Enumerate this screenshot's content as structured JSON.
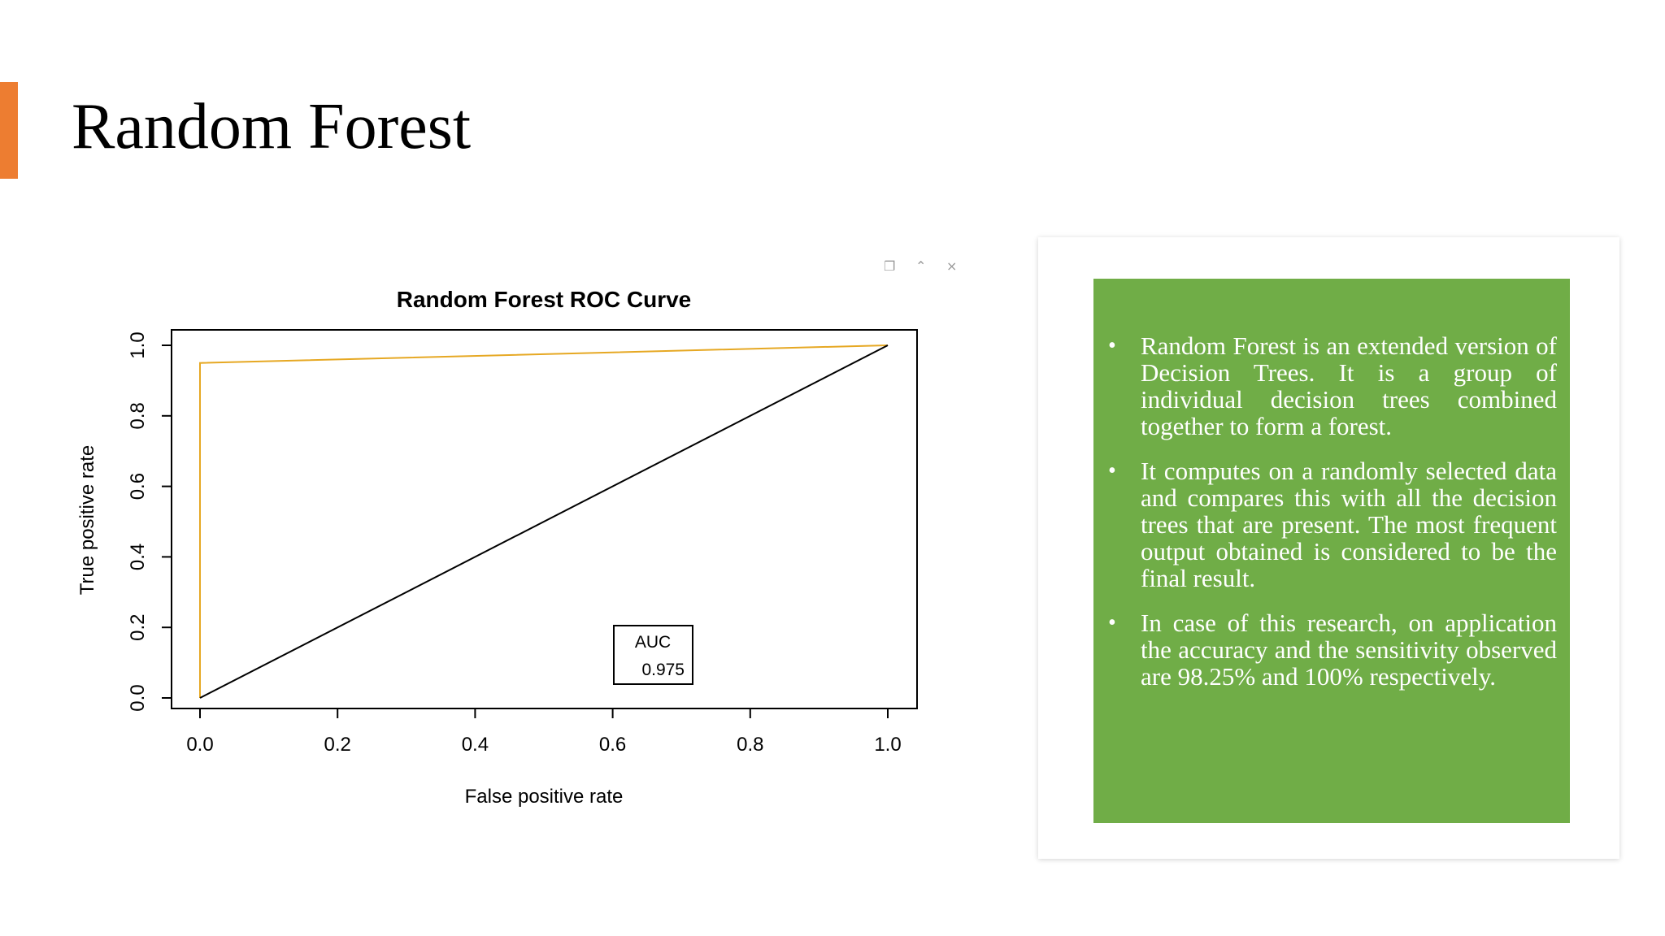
{
  "slide": {
    "title": "Random Forest",
    "accent_color": "#ed7d31"
  },
  "window_controls": [
    {
      "name": "copy-icon",
      "glyph": "❐"
    },
    {
      "name": "collapse-icon",
      "glyph": "⌃"
    },
    {
      "name": "close-icon",
      "glyph": "×"
    }
  ],
  "chart_data": {
    "type": "line",
    "title": "Random Forest ROC Curve",
    "xlabel": "False positive rate",
    "ylabel": "True positive rate",
    "xlim": [
      0.0,
      1.0
    ],
    "ylim": [
      0.0,
      1.0
    ],
    "x_ticks": [
      "0.0",
      "0.2",
      "0.4",
      "0.6",
      "0.8",
      "1.0"
    ],
    "y_ticks": [
      "0.0",
      "0.2",
      "0.4",
      "0.6",
      "0.8",
      "1.0"
    ],
    "grid": false,
    "series": [
      {
        "color": "#e6a823",
        "x": [
          0.0,
          0.0,
          1.0
        ],
        "y": [
          0.0,
          0.95,
          1.0
        ]
      },
      {
        "color": "#000000",
        "x": [
          0.0,
          1.0
        ],
        "y": [
          0.0,
          1.0
        ]
      }
    ],
    "legend": {
      "position": "bottom-center",
      "label": "AUC",
      "value": "0.975"
    }
  },
  "text_box": {
    "background": "#70ad47",
    "bullets": [
      "Random Forest is an extended version of Decision Trees. It is a group of individual decision trees combined together to form a forest.",
      "It computes on a randomly selected data and compares this with all the decision trees that are present. The most frequent output obtained is considered to be the final result.",
      "In case of this research, on application the accuracy and the sensitivity observed are 98.25% and 100% respectively."
    ]
  }
}
